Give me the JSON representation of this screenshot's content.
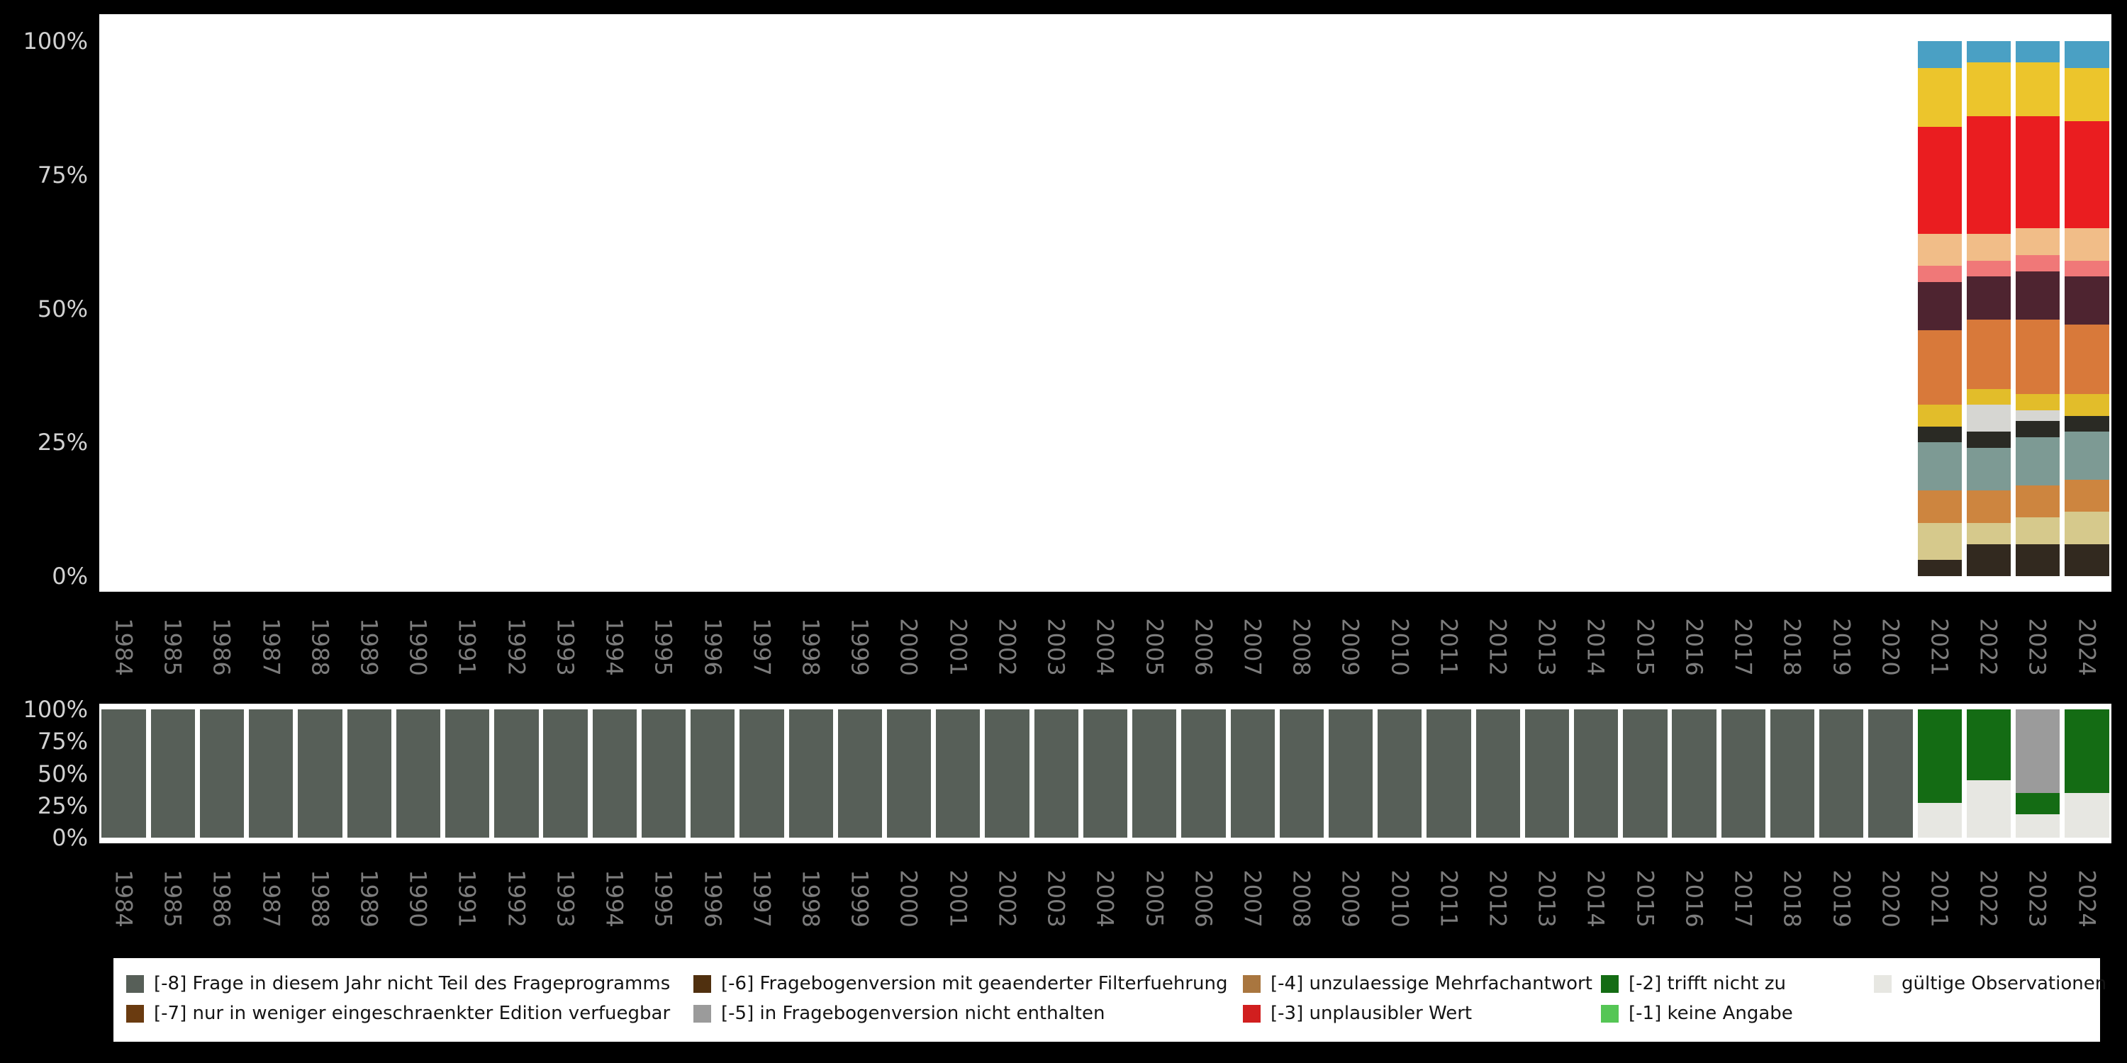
{
  "page": {
    "background": "#000000",
    "plot_background": "#ffffff"
  },
  "axis": {
    "years": [
      "1984",
      "1985",
      "1986",
      "1987",
      "1988",
      "1989",
      "1990",
      "1991",
      "1992",
      "1993",
      "1994",
      "1995",
      "1996",
      "1997",
      "1998",
      "1999",
      "2000",
      "2001",
      "2002",
      "2003",
      "2004",
      "2005",
      "2006",
      "2007",
      "2008",
      "2009",
      "2010",
      "2011",
      "2012",
      "2013",
      "2014",
      "2015",
      "2016",
      "2017",
      "2018",
      "2019",
      "2020",
      "2021",
      "2022",
      "2023",
      "2024"
    ],
    "percent_ticks": [
      "100%",
      "75%",
      "50%",
      "25%",
      "0%"
    ],
    "y_label_color": "#d2d2d2",
    "x_label_color": "#7d7d7d"
  },
  "chart_data": [
    {
      "id": "category-distribution-by-year",
      "type": "stacked-bar-percent",
      "ylim": [
        0,
        100
      ],
      "series": [
        {
          "name": "steel-blue",
          "color": "#4aa0c4",
          "values_by_year": {
            "2021": 5,
            "2022": 4,
            "2023": 4,
            "2024": 5
          }
        },
        {
          "name": "yellow",
          "color": "#ecc52c",
          "values_by_year": {
            "2021": 11,
            "2022": 10,
            "2023": 10,
            "2024": 10
          }
        },
        {
          "name": "red",
          "color": "#ea1d20",
          "values_by_year": {
            "2021": 20,
            "2022": 22,
            "2023": 21,
            "2024": 20
          }
        },
        {
          "name": "peach",
          "color": "#f1bd88",
          "values_by_year": {
            "2021": 6,
            "2022": 5,
            "2023": 5,
            "2024": 6
          }
        },
        {
          "name": "salmon",
          "color": "#f07878",
          "values_by_year": {
            "2021": 3,
            "2022": 3,
            "2023": 3,
            "2024": 3
          }
        },
        {
          "name": "dark-maroon",
          "color": "#4e2430",
          "values_by_year": {
            "2021": 9,
            "2022": 8,
            "2023": 9,
            "2024": 9
          }
        },
        {
          "name": "orange",
          "color": "#d8793a",
          "values_by_year": {
            "2021": 14,
            "2022": 13,
            "2023": 14,
            "2024": 13
          }
        },
        {
          "name": "yellow-2",
          "color": "#e2bd2a",
          "values_by_year": {
            "2021": 4,
            "2022": 3,
            "2023": 3,
            "2024": 4
          }
        },
        {
          "name": "light-gray",
          "color": "#d6d6d2",
          "values_by_year": {
            "2021": 0,
            "2022": 5,
            "2023": 2,
            "2024": 0
          }
        },
        {
          "name": "black",
          "color": "#2a2a24",
          "values_by_year": {
            "2021": 3,
            "2022": 3,
            "2023": 3,
            "2024": 3
          }
        },
        {
          "name": "teal-gray",
          "color": "#7d9a94",
          "values_by_year": {
            "2021": 9,
            "2022": 8,
            "2023": 9,
            "2024": 9
          }
        },
        {
          "name": "brown-orange",
          "color": "#cd853f",
          "values_by_year": {
            "2021": 6,
            "2022": 6,
            "2023": 6,
            "2024": 6
          }
        },
        {
          "name": "khaki",
          "color": "#d6c98c",
          "values_by_year": {
            "2021": 7,
            "2022": 4,
            "2023": 5,
            "2024": 6
          }
        },
        {
          "name": "dark-olive",
          "color": "#32291f",
          "values_by_year": {
            "2021": 3,
            "2022": 6,
            "2023": 6,
            "2024": 6
          }
        }
      ]
    },
    {
      "id": "missing-values-by-year",
      "type": "stacked-bar-percent",
      "ylim": [
        0,
        100
      ],
      "series": [
        {
          "name": "missing-8-nicht-teil-des-frageprogramms",
          "color": "#575f58",
          "default_value": 100,
          "values_by_year": {
            "2021": 0,
            "2022": 0,
            "2023": 0,
            "2024": 0
          }
        },
        {
          "name": "missing-5-in-fragebogenversion-nicht-enthalten",
          "color": "#9b9b9b",
          "values_by_year": {
            "2023": 65
          }
        },
        {
          "name": "missing-2-trifft-nicht-zu",
          "color": "#146c14",
          "values_by_year": {
            "2021": 73,
            "2022": 55,
            "2023": 17,
            "2024": 65
          }
        },
        {
          "name": "gueltige-observationen",
          "color": "#e7e7e2",
          "values_by_year": {
            "2021": 27,
            "2022": 45,
            "2023": 18,
            "2024": 35
          }
        }
      ]
    }
  ],
  "legend": {
    "rows": [
      [
        {
          "label": "[-8] Frage in diesem Jahr nicht Teil des Frageprogramms",
          "color": "#575f58"
        },
        {
          "label": "[-6] Fragebogenversion mit geaenderter Filterfuehrung",
          "color": "#50300f"
        },
        {
          "label": "[-4] unzulaessige Mehrfachantwort",
          "color": "#a9763f"
        },
        {
          "label": "[-2] trifft nicht zu",
          "color": "#146c14"
        },
        {
          "label": "gültige Observationen",
          "color": "#e7e7e2"
        }
      ],
      [
        {
          "label": "[-7] nur in weniger eingeschraenkter Edition verfuegbar",
          "color": "#6a3b10"
        },
        {
          "label": "[-5] in Fragebogenversion nicht enthalten",
          "color": "#9b9b9b"
        },
        {
          "label": "[-3] unplausibler Wert",
          "color": "#d11f1f"
        },
        {
          "label": "[-1] keine Angabe",
          "color": "#55c655"
        }
      ]
    ]
  }
}
